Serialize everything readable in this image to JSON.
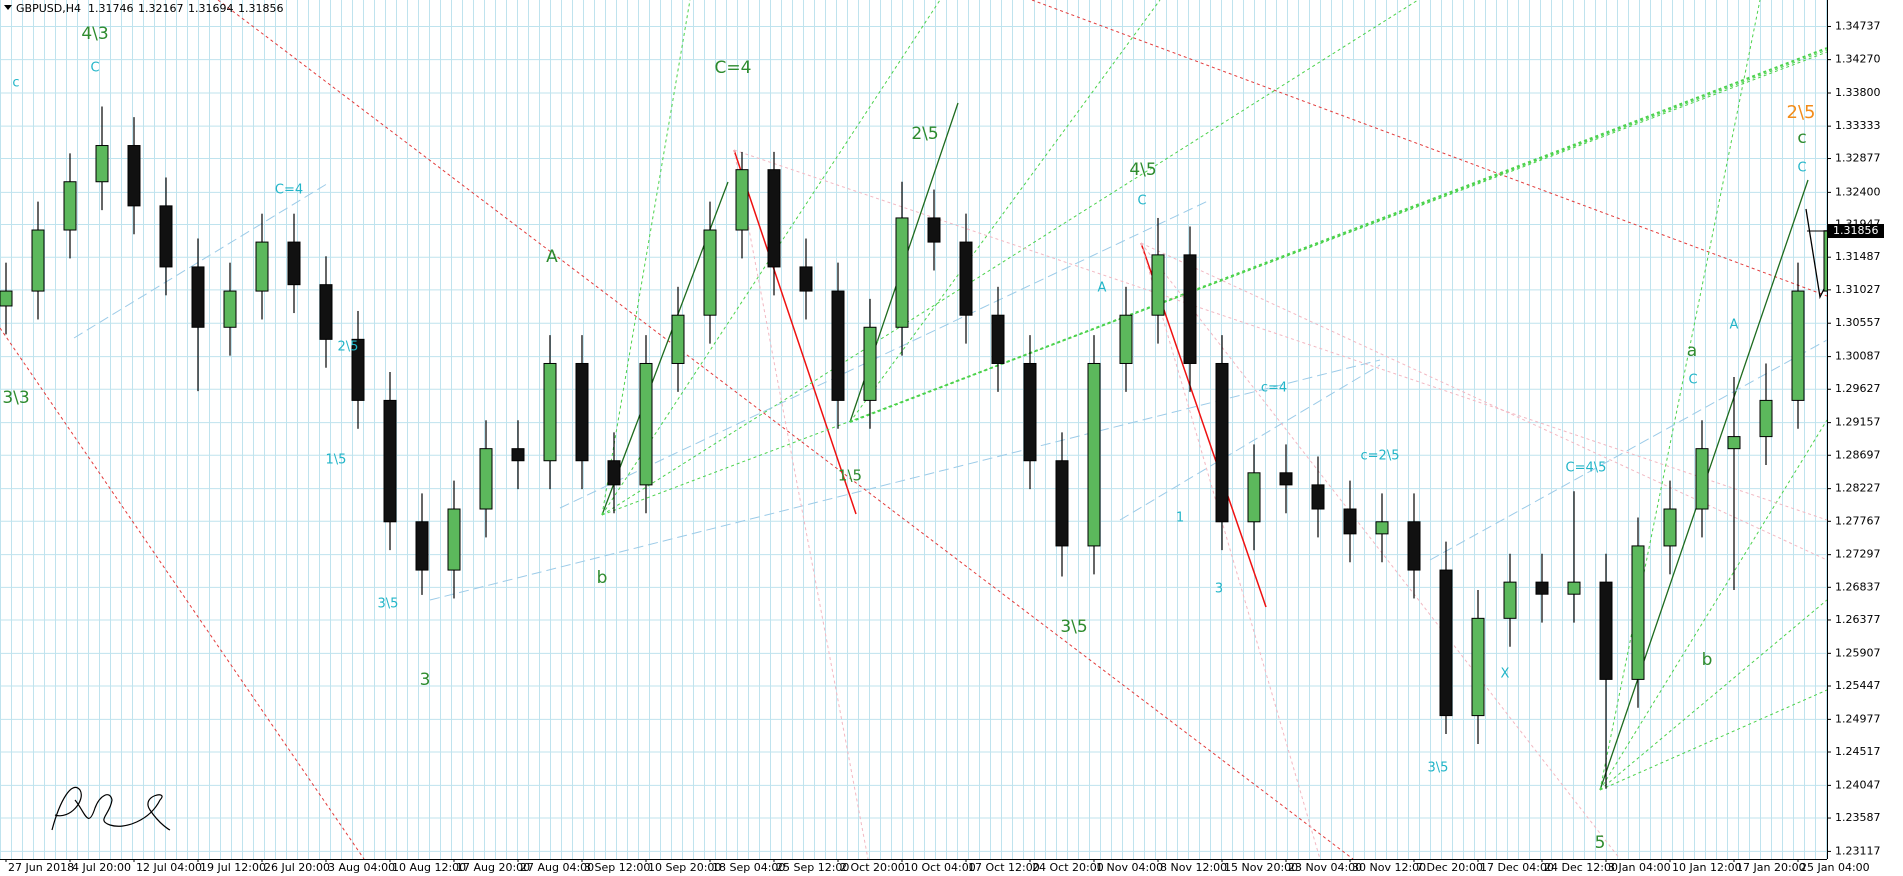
{
  "chart_data": {
    "type": "candlestick",
    "symbol": "GBPUSD,H4",
    "quote": [
      1.31746,
      1.32167,
      1.31694,
      1.31856
    ],
    "last_price": 1.31856,
    "up_color": "#5cb85c",
    "down_color": "#111111",
    "grid": true,
    "categories": [
      "27 Jun 2018",
      null,
      "4 Jul 20:00",
      null,
      "12 Jul 04:00",
      null,
      "19 Jul 12:00",
      null,
      "26 Jul 20:00",
      null,
      "3 Aug 04:00",
      null,
      "10 Aug 12:00",
      null,
      "17 Aug 20:00",
      null,
      "27 Aug 04:00",
      null,
      "3 Sep 12:00",
      null,
      "10 Sep 20:00",
      null,
      "18 Sep 04:00",
      null,
      "25 Sep 12:00",
      null,
      "2 Oct 20:00",
      null,
      "10 Oct 04:00",
      null,
      "17 Oct 12:00",
      null,
      "24 Oct 20:00",
      null,
      "1 Nov 04:00",
      null,
      "8 Nov 12:00",
      null,
      "15 Nov 20:00",
      null,
      "23 Nov 04:00",
      null,
      "30 Nov 12:00",
      null,
      "7 Dec 20:00",
      null,
      "17 Dec 04:00",
      null,
      "24 Dec 12:00",
      null,
      "3 Jan 04:00",
      null,
      "10 Jan 12:00",
      null,
      "17 Jan 20:00",
      null,
      "25 Jan 04:00",
      null
    ],
    "open": [
      1.308,
      1.3101,
      1.3187,
      1.3255,
      1.3306,
      1.3221,
      1.3135,
      1.305,
      1.3101,
      1.317,
      1.311,
      1.3033,
      1.2947,
      1.2776,
      1.2708,
      1.2794,
      1.2879,
      1.2862,
      1.2999,
      1.2862,
      1.2828,
      1.2999,
      1.3067,
      1.3187,
      1.3272,
      1.3135,
      1.3101,
      1.2947,
      1.305,
      1.3204,
      1.317,
      1.3067,
      1.2999,
      1.2862,
      1.2742,
      1.2999,
      1.3067,
      1.3152,
      1.2999,
      1.2776,
      1.2845,
      1.2828,
      1.2794,
      1.2759,
      1.2776,
      1.2708,
      1.2503,
      1.264,
      1.2691,
      1.2674,
      1.2691,
      1.2554,
      1.2742,
      1.2794,
      1.2879,
      1.2896,
      1.2947,
      1.3101
    ],
    "high": [
      1.3141,
      1.3227,
      1.3295,
      1.3361,
      1.3346,
      1.3261,
      1.3175,
      1.3141,
      1.321,
      1.321,
      1.315,
      1.3073,
      1.2987,
      1.2816,
      1.2834,
      1.2919,
      1.2919,
      1.3039,
      1.3039,
      1.2902,
      1.3039,
      1.3107,
      1.3227,
      1.3297,
      1.3297,
      1.3175,
      1.3141,
      1.309,
      1.3255,
      1.3244,
      1.321,
      1.3107,
      1.3039,
      1.2902,
      1.3039,
      1.3107,
      1.3204,
      1.3192,
      1.3039,
      1.2885,
      1.2885,
      1.2868,
      1.2834,
      1.2816,
      1.2816,
      1.2748,
      1.268,
      1.2731,
      1.2731,
      1.2819,
      1.2731,
      1.2782,
      1.2834,
      1.2919,
      1.298,
      1.2999,
      1.3141,
      1.3218
    ],
    "low": [
      1.304,
      1.3061,
      1.3147,
      1.3215,
      1.3181,
      1.3095,
      1.296,
      1.301,
      1.3061,
      1.307,
      1.2993,
      1.2907,
      1.2736,
      1.2673,
      1.2668,
      1.2754,
      1.2822,
      1.2822,
      1.2822,
      1.2788,
      1.2788,
      1.2959,
      1.3027,
      1.3147,
      1.3095,
      1.3061,
      1.2907,
      1.2907,
      1.301,
      1.313,
      1.3027,
      1.2959,
      1.2822,
      1.2699,
      1.2702,
      1.2959,
      1.3027,
      1.2959,
      1.2736,
      1.2736,
      1.2788,
      1.2754,
      1.2719,
      1.2719,
      1.2668,
      1.2477,
      1.2463,
      1.26,
      1.2634,
      1.2634,
      1.24,
      1.2514,
      1.2702,
      1.2754,
      1.268,
      1.2856,
      1.2907,
      1.3061
    ],
    "close": [
      1.3101,
      1.3187,
      1.3255,
      1.3306,
      1.3221,
      1.3135,
      1.305,
      1.3101,
      1.317,
      1.311,
      1.3033,
      1.2947,
      1.2776,
      1.2708,
      1.2794,
      1.2879,
      1.2862,
      1.2999,
      1.2862,
      1.2828,
      1.2999,
      1.3067,
      1.3187,
      1.3272,
      1.3135,
      1.3101,
      1.2947,
      1.305,
      1.3204,
      1.317,
      1.3067,
      1.2999,
      1.2862,
      1.2742,
      1.2999,
      1.3067,
      1.3152,
      1.2999,
      1.2776,
      1.2845,
      1.2828,
      1.2794,
      1.2759,
      1.2776,
      1.2708,
      1.2503,
      1.264,
      1.2691,
      1.2674,
      1.2691,
      1.2554,
      1.2742,
      1.2794,
      1.2879,
      1.2896,
      1.2947,
      1.3101,
      1.3186
    ],
    "ylim": [
      1.2301,
      1.3511
    ],
    "yticks": [
      1.34737,
      {
        "value": 1.3427,
        "label": "1.34270"
      },
      {
        "value": 1.338,
        "label": "1.33800"
      },
      1.33333,
      1.32877,
      {
        "value": 1.324,
        "label": "1.32400"
      },
      1.31947,
      1.31487,
      1.31027,
      1.30557,
      1.30087,
      1.29627,
      1.29157,
      1.28697,
      1.28227,
      1.27767,
      1.27297,
      1.26837,
      1.26377,
      1.25907,
      1.25447,
      1.24977,
      1.24517,
      1.24047,
      1.23587,
      1.23117
    ],
    "annotations": [
      {
        "text": "4\\3",
        "color": "#2e8b2e"
      },
      {
        "text": "3\\3",
        "color": "#2e8b2e"
      },
      {
        "text": "3",
        "color": "#2e8b2e"
      },
      {
        "text": "A",
        "color": "#2e8b2e"
      },
      {
        "text": "b",
        "color": "#2e8b2e"
      },
      {
        "text": "C=4",
        "color": "#2e8b2e"
      },
      {
        "text": "2\\5",
        "color": "#2e8b2e"
      },
      {
        "text": "1\\5",
        "color": "#2e8b2e"
      },
      {
        "text": "4\\5",
        "color": "#2e8b2e"
      },
      {
        "text": "3\\5",
        "color": "#2e8b2e"
      },
      {
        "text": "5",
        "color": "#2e8b2e"
      },
      {
        "text": "a",
        "color": "#2e8b2e"
      },
      {
        "text": "b",
        "color": "#2e8b2e"
      },
      {
        "text": "2\\5",
        "color": "#f28c1a"
      },
      {
        "text": "c",
        "color": "#2e8b2e"
      },
      {
        "text": "C",
        "color": "#22b5c8"
      },
      {
        "text": "c",
        "color": "#22b5c8"
      },
      {
        "text": "C",
        "color": "#22b5c8"
      },
      {
        "text": "C=4\\5",
        "color": "#22b5c8"
      },
      {
        "text": "C",
        "color": "#22b5c8"
      },
      {
        "text": "A",
        "color": "#22b5c8"
      },
      {
        "text": "c=2\\5",
        "color": "#22b5c8"
      },
      {
        "text": "3\\5",
        "color": "#22b5c8"
      },
      {
        "text": "X",
        "color": "#22b5c8"
      },
      {
        "text": "1",
        "color": "#22b5c8"
      },
      {
        "text": "3",
        "color": "#22b5c8"
      },
      {
        "text": "A",
        "color": "#22b5c8"
      },
      {
        "text": "C",
        "color": "#22b5c8"
      },
      {
        "text": "c=4",
        "color": "#22b5c8"
      },
      {
        "text": "C=4",
        "color": "#22b5c8"
      },
      {
        "text": "3\\5",
        "color": "#22b5c8"
      },
      {
        "text": "1\\5",
        "color": "#22b5c8"
      },
      {
        "text": "2\\5",
        "color": "#22b5c8"
      }
    ]
  }
}
